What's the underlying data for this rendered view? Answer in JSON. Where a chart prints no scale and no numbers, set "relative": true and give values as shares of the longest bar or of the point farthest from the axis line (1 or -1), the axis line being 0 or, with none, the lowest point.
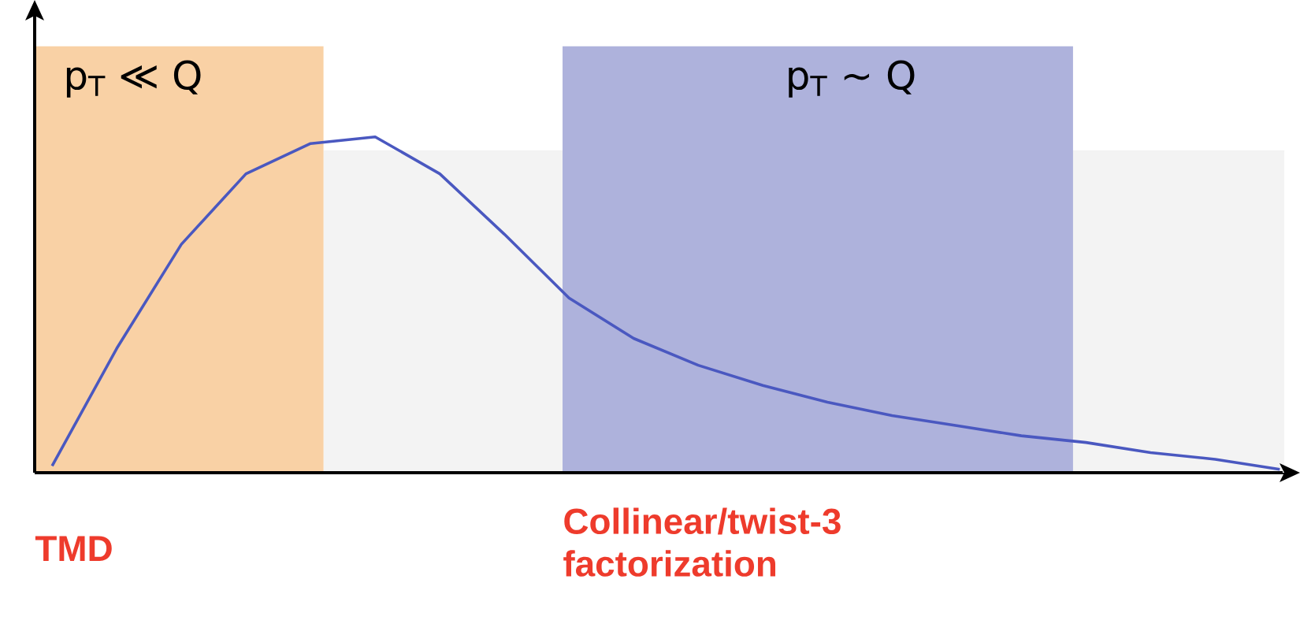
{
  "chart_data": {
    "type": "line",
    "relative": true,
    "categories": [
      null,
      null,
      null,
      null,
      null,
      null,
      null,
      null,
      null,
      null,
      null,
      null,
      null,
      null,
      null,
      null,
      null,
      null,
      null,
      null
    ],
    "series": [
      {
        "color": "#4a58c0",
        "values": [
          0.02,
          0.37,
          0.68,
          0.89,
          0.98,
          1,
          0.89,
          0.71,
          0.52,
          0.4,
          0.32,
          0.26,
          0.21,
          0.17,
          0.14,
          0.11,
          0.09,
          0.06,
          0.04,
          0.01
        ]
      }
    ],
    "annotations": [
      "p$_{T}$ ≪ Q",
      "p$_{T}$ ∼ Q",
      "TMD",
      "Collinear/twist-3 factorization"
    ]
  }
}
